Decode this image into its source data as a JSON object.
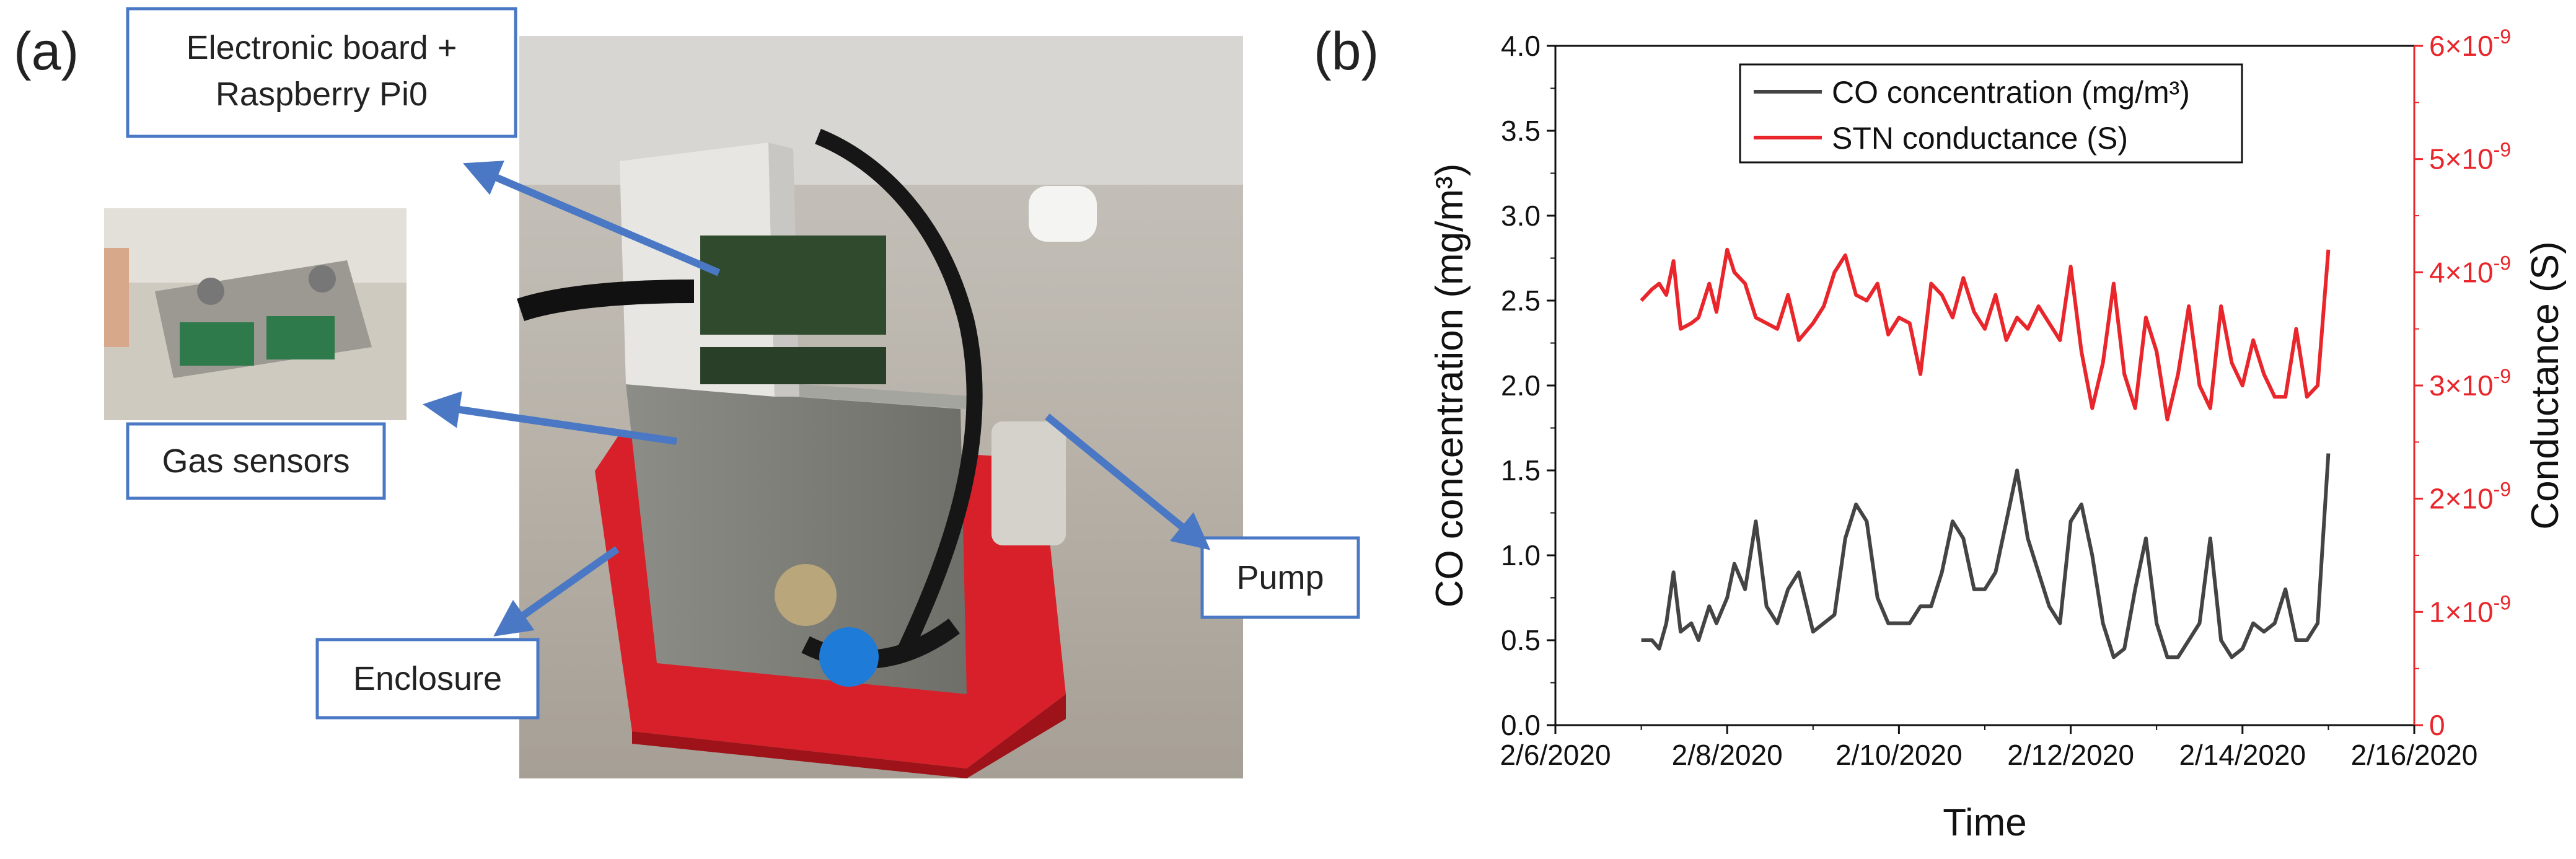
{
  "panel_a": {
    "label": "(a)",
    "callouts": [
      {
        "id": "board",
        "lines": [
          "Electronic board +",
          "Raspberry Pi0"
        ]
      },
      {
        "id": "sensors",
        "lines": [
          "Gas sensors"
        ]
      },
      {
        "id": "pump",
        "lines": [
          "Pump"
        ]
      },
      {
        "id": "enclosure",
        "lines": [
          "Enclosure"
        ]
      }
    ],
    "photo_description_icon": "device-photo"
  },
  "panel_b": {
    "label": "(b)"
  },
  "chart_data": {
    "type": "line",
    "title": "",
    "xlabel": "Time",
    "ylabel_left": "CO concentration (mg/m³)",
    "ylabel_right": "Conductance (S)",
    "x_ticks": [
      "2/6/2020",
      "2/8/2020",
      "2/10/2020",
      "2/12/2020",
      "2/14/2020",
      "2/16/2020"
    ],
    "xlim": [
      "2/6/2020",
      "2/16/2020"
    ],
    "ylim_left": [
      0,
      4.0
    ],
    "y_ticks_left": [
      "0.0",
      "0.5",
      "1.0",
      "1.5",
      "2.0",
      "2.5",
      "3.0",
      "3.5",
      "4.0"
    ],
    "ylim_right": [
      0,
      6e-09
    ],
    "y_ticks_right": [
      {
        "base": "0",
        "exp": ""
      },
      {
        "base": "1×10",
        "exp": "-9"
      },
      {
        "base": "2×10",
        "exp": "-9"
      },
      {
        "base": "3×10",
        "exp": "-9"
      },
      {
        "base": "4×10",
        "exp": "-9"
      },
      {
        "base": "5×10",
        "exp": "-9"
      },
      {
        "base": "6×10",
        "exp": "-9"
      }
    ],
    "legend_position": "top-right",
    "colors": {
      "co": "#444444",
      "stn": "#e8262b",
      "right_axis": "#e8262b"
    },
    "series": [
      {
        "name": "CO concentration (mg/m³)",
        "axis": "left",
        "x": [
          "2/7/2020 00:00",
          "2/7/2020 03:00",
          "2/7/2020 05:00",
          "2/7/2020 07:00",
          "2/7/2020 09:00",
          "2/7/2020 11:00",
          "2/7/2020 14:00",
          "2/7/2020 16:00",
          "2/7/2020 19:00",
          "2/7/2020 21:00",
          "2/8/2020 00:00",
          "2/8/2020 02:00",
          "2/8/2020 05:00",
          "2/8/2020 08:00",
          "2/8/2020 11:00",
          "2/8/2020 14:00",
          "2/8/2020 17:00",
          "2/8/2020 20:00",
          "2/9/2020 00:00",
          "2/9/2020 03:00",
          "2/9/2020 06:00",
          "2/9/2020 09:00",
          "2/9/2020 12:00",
          "2/9/2020 15:00",
          "2/9/2020 18:00",
          "2/9/2020 21:00",
          "2/10/2020 00:00",
          "2/10/2020 03:00",
          "2/10/2020 06:00",
          "2/10/2020 09:00",
          "2/10/2020 12:00",
          "2/10/2020 15:00",
          "2/10/2020 18:00",
          "2/10/2020 21:00",
          "2/11/2020 00:00",
          "2/11/2020 03:00",
          "2/11/2020 06:00",
          "2/11/2020 09:00",
          "2/11/2020 12:00",
          "2/11/2020 15:00",
          "2/11/2020 18:00",
          "2/11/2020 21:00",
          "2/12/2020 00:00",
          "2/12/2020 03:00",
          "2/12/2020 06:00",
          "2/12/2020 09:00",
          "2/12/2020 12:00",
          "2/12/2020 15:00",
          "2/12/2020 18:00",
          "2/12/2020 21:00",
          "2/13/2020 00:00",
          "2/13/2020 03:00",
          "2/13/2020 06:00",
          "2/13/2020 09:00",
          "2/13/2020 12:00",
          "2/13/2020 15:00",
          "2/13/2020 18:00",
          "2/13/2020 21:00",
          "2/14/2020 00:00",
          "2/14/2020 03:00",
          "2/14/2020 06:00",
          "2/14/2020 09:00",
          "2/14/2020 12:00",
          "2/14/2020 15:00",
          "2/14/2020 18:00",
          "2/14/2020 21:00",
          "2/15/2020 00:00"
        ],
        "values": [
          0.5,
          0.5,
          0.45,
          0.6,
          0.9,
          0.55,
          0.6,
          0.5,
          0.7,
          0.6,
          0.75,
          0.95,
          0.8,
          1.2,
          0.7,
          0.6,
          0.8,
          0.9,
          0.55,
          0.6,
          0.65,
          1.1,
          1.3,
          1.2,
          0.75,
          0.6,
          0.6,
          0.6,
          0.7,
          0.7,
          0.9,
          1.2,
          1.1,
          0.8,
          0.8,
          0.9,
          1.2,
          1.5,
          1.1,
          0.9,
          0.7,
          0.6,
          1.2,
          1.3,
          1.0,
          0.6,
          0.4,
          0.45,
          0.8,
          1.1,
          0.6,
          0.4,
          0.4,
          0.5,
          0.6,
          1.1,
          0.5,
          0.4,
          0.45,
          0.6,
          0.55,
          0.6,
          0.8,
          0.5,
          0.5,
          0.6,
          1.6
        ]
      },
      {
        "name": "STN conductance (S)",
        "axis": "right",
        "x": [
          "2/7/2020 00:00",
          "2/7/2020 03:00",
          "2/7/2020 05:00",
          "2/7/2020 07:00",
          "2/7/2020 09:00",
          "2/7/2020 11:00",
          "2/7/2020 14:00",
          "2/7/2020 16:00",
          "2/7/2020 19:00",
          "2/7/2020 21:00",
          "2/8/2020 00:00",
          "2/8/2020 02:00",
          "2/8/2020 05:00",
          "2/8/2020 08:00",
          "2/8/2020 11:00",
          "2/8/2020 14:00",
          "2/8/2020 17:00",
          "2/8/2020 20:00",
          "2/9/2020 00:00",
          "2/9/2020 03:00",
          "2/9/2020 06:00",
          "2/9/2020 09:00",
          "2/9/2020 12:00",
          "2/9/2020 15:00",
          "2/9/2020 18:00",
          "2/9/2020 21:00",
          "2/10/2020 00:00",
          "2/10/2020 03:00",
          "2/10/2020 06:00",
          "2/10/2020 09:00",
          "2/10/2020 12:00",
          "2/10/2020 15:00",
          "2/10/2020 18:00",
          "2/10/2020 21:00",
          "2/11/2020 00:00",
          "2/11/2020 03:00",
          "2/11/2020 06:00",
          "2/11/2020 09:00",
          "2/11/2020 12:00",
          "2/11/2020 15:00",
          "2/11/2020 18:00",
          "2/11/2020 21:00",
          "2/12/2020 00:00",
          "2/12/2020 03:00",
          "2/12/2020 06:00",
          "2/12/2020 09:00",
          "2/12/2020 12:00",
          "2/12/2020 15:00",
          "2/12/2020 18:00",
          "2/12/2020 21:00",
          "2/13/2020 00:00",
          "2/13/2020 03:00",
          "2/13/2020 06:00",
          "2/13/2020 09:00",
          "2/13/2020 12:00",
          "2/13/2020 15:00",
          "2/13/2020 18:00",
          "2/13/2020 21:00",
          "2/14/2020 00:00",
          "2/14/2020 03:00",
          "2/14/2020 06:00",
          "2/14/2020 09:00",
          "2/14/2020 12:00",
          "2/14/2020 15:00",
          "2/14/2020 18:00",
          "2/14/2020 21:00",
          "2/15/2020 00:00"
        ],
        "values": [
          3.75e-09,
          3.85e-09,
          3.9e-09,
          3.8e-09,
          4.1e-09,
          3.5e-09,
          3.55e-09,
          3.6e-09,
          3.9e-09,
          3.65e-09,
          4.2e-09,
          4e-09,
          3.9e-09,
          3.6e-09,
          3.55e-09,
          3.5e-09,
          3.8e-09,
          3.4e-09,
          3.55e-09,
          3.7e-09,
          4e-09,
          4.15e-09,
          3.8e-09,
          3.75e-09,
          3.9e-09,
          3.45e-09,
          3.6e-09,
          3.55e-09,
          3.1e-09,
          3.9e-09,
          3.8e-09,
          3.6e-09,
          3.95e-09,
          3.65e-09,
          3.5e-09,
          3.8e-09,
          3.4e-09,
          3.6e-09,
          3.5e-09,
          3.7e-09,
          3.55e-09,
          3.4e-09,
          4.05e-09,
          3.3e-09,
          2.8e-09,
          3.2e-09,
          3.9e-09,
          3.1e-09,
          2.8e-09,
          3.6e-09,
          3.3e-09,
          2.7e-09,
          3.1e-09,
          3.7e-09,
          3e-09,
          2.8e-09,
          3.7e-09,
          3.2e-09,
          3e-09,
          3.4e-09,
          3.1e-09,
          2.9e-09,
          2.9e-09,
          3.5e-09,
          2.9e-09,
          3e-09,
          4.2e-09
        ]
      }
    ]
  }
}
